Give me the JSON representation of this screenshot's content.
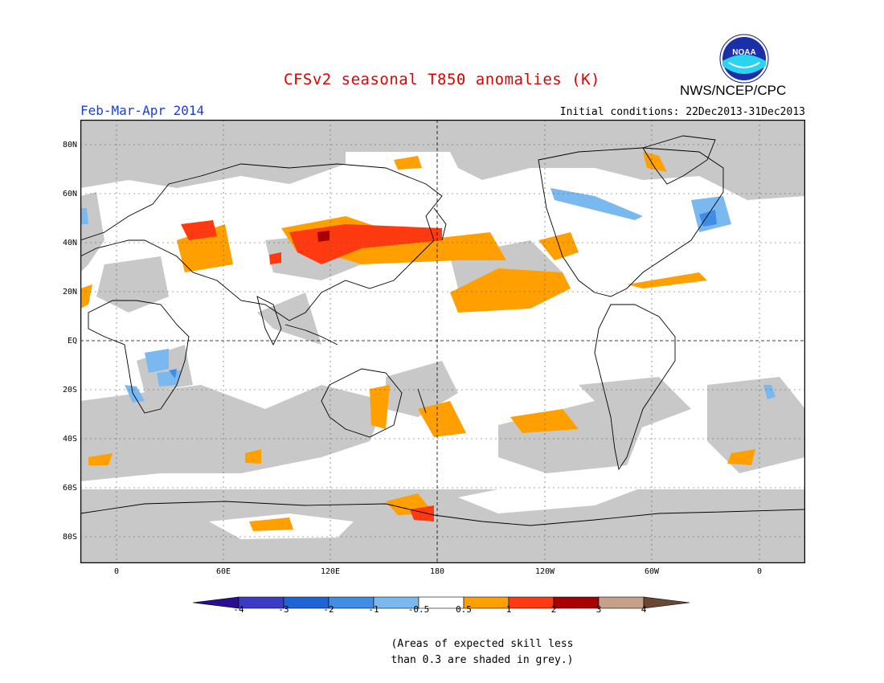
{
  "title": "CFSv2 seasonal T850 anomalies (K)",
  "period": "Feb-Mar-Apr 2014",
  "initial_conditions": "Initial conditions: 22Dec2013-31Dec2013",
  "org": "NWS/NCEP/CPC",
  "logo_text": "NOAA",
  "lat_labels": [
    "80N",
    "60N",
    "40N",
    "20N",
    "EQ",
    "20S",
    "40S",
    "60S",
    "80S"
  ],
  "lon_labels": [
    "0",
    "60E",
    "120E",
    "180",
    "120W",
    "60W",
    "0"
  ],
  "colorbar": {
    "labels": [
      "-4",
      "-3",
      "-2",
      "-1",
      "-0.5",
      "0.5",
      "1",
      "2",
      "3",
      "4"
    ],
    "colors": [
      "#2a0d91",
      "#3b3bc6",
      "#1f64d6",
      "#3f8de4",
      "#7ab8f0",
      "#ffffff",
      "#ff9f00",
      "#ff3a10",
      "#a80000",
      "#c6a08a",
      "#6a4634"
    ]
  },
  "note_line1": "(Areas of expected skill less",
  "note_line2": "than 0.3 are shaded in grey.)",
  "colors": {
    "title": "#e00000",
    "period": "#1a3fd8",
    "grey_shading": "#c8c8c8",
    "land_outline": "#000000"
  }
}
